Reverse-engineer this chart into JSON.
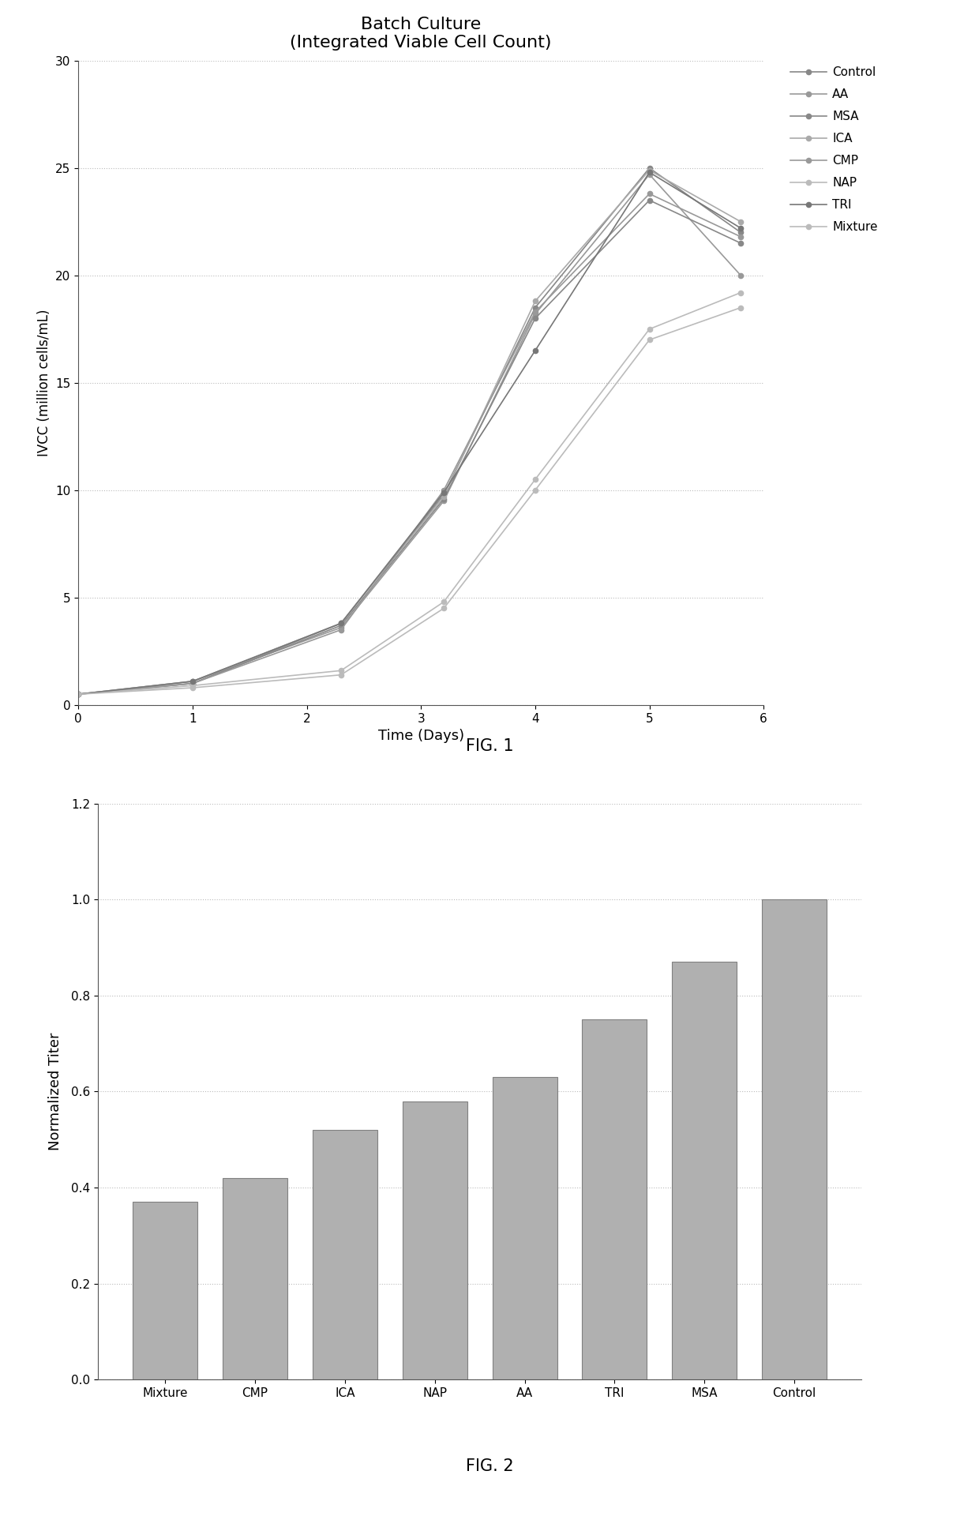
{
  "fig1": {
    "title": "Batch Culture\n(Integrated Viable Cell Count)",
    "xlabel": "Time (Days)",
    "ylabel": "IVCC (million cells/mL)",
    "xlim": [
      0,
      6
    ],
    "ylim": [
      0,
      30
    ],
    "yticks": [
      0,
      5,
      10,
      15,
      20,
      25,
      30
    ],
    "xticks": [
      0,
      1,
      2,
      3,
      4,
      5,
      6
    ],
    "series": {
      "Control": {
        "x": [
          0,
          1,
          2.3,
          3.2,
          4,
          5,
          5.8
        ],
        "y": [
          0.5,
          1.0,
          3.8,
          9.8,
          18.5,
          25.0,
          22.0
        ]
      },
      "AA": {
        "x": [
          0,
          1,
          2.3,
          3.2,
          4,
          5,
          5.8
        ],
        "y": [
          0.5,
          1.1,
          3.6,
          9.5,
          18.2,
          24.7,
          20.0
        ]
      },
      "MSA": {
        "x": [
          0,
          1,
          2.3,
          3.2,
          4,
          5,
          5.8
        ],
        "y": [
          0.5,
          1.0,
          3.7,
          9.6,
          18.0,
          23.5,
          21.5
        ]
      },
      "ICA": {
        "x": [
          0,
          1,
          2.3,
          3.2,
          4,
          5,
          5.8
        ],
        "y": [
          0.5,
          1.1,
          3.8,
          9.7,
          18.8,
          24.9,
          22.5
        ]
      },
      "CMP": {
        "x": [
          0,
          1,
          2.3,
          3.2,
          4,
          5,
          5.8
        ],
        "y": [
          0.5,
          1.0,
          3.5,
          10.0,
          18.3,
          23.8,
          21.8
        ]
      },
      "NAP": {
        "x": [
          0,
          1,
          2.3,
          3.2,
          4,
          5,
          5.8
        ],
        "y": [
          0.5,
          0.9,
          1.6,
          4.8,
          10.5,
          17.5,
          19.2
        ]
      },
      "TRI": {
        "x": [
          0,
          1,
          2.3,
          3.2,
          4,
          5,
          5.8
        ],
        "y": [
          0.5,
          1.1,
          3.8,
          9.9,
          16.5,
          24.8,
          22.2
        ]
      },
      "Mixture": {
        "x": [
          0,
          1,
          2.3,
          3.2,
          4,
          5,
          5.8
        ],
        "y": [
          0.5,
          0.8,
          1.4,
          4.5,
          10.0,
          17.0,
          18.5
        ]
      }
    },
    "legend_order": [
      "Control",
      "AA",
      "MSA",
      "ICA",
      "CMP",
      "NAP",
      "TRI",
      "Mixture"
    ]
  },
  "fig2": {
    "xlabel": "",
    "ylabel": "Normalized Titer",
    "ylim": [
      0,
      1.2
    ],
    "yticks": [
      0,
      0.2,
      0.4,
      0.6,
      0.8,
      1.0,
      1.2
    ],
    "categories": [
      "Mixture",
      "CMP",
      "ICA",
      "NAP",
      "AA",
      "TRI",
      "MSA",
      "Control"
    ],
    "values": [
      0.37,
      0.42,
      0.52,
      0.58,
      0.63,
      0.75,
      0.87,
      1.0
    ],
    "bar_color": "#b0b0b0",
    "bar_edge_color": "#808080"
  },
  "fig1_label": "FIG. 1",
  "fig2_label": "FIG. 2",
  "background_color": "#ffffff",
  "gray_shades": {
    "Control": "#888888",
    "AA": "#999999",
    "MSA": "#888888",
    "ICA": "#aaaaaa",
    "CMP": "#999999",
    "NAP": "#bbbbbb",
    "TRI": "#777777",
    "Mixture": "#bbbbbb"
  }
}
